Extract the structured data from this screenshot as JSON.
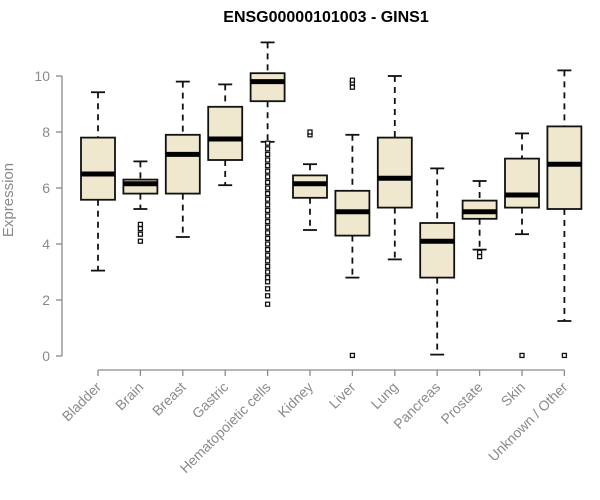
{
  "colors": {
    "box_fill": "#efe8cf",
    "box_stroke": "#111111",
    "median": "#000000",
    "axis": "#8a8a8a",
    "text_gray": "#8a8a8a",
    "title": "#000000"
  },
  "chart_data": {
    "type": "boxplot",
    "title": "ENSG00000101003 - GINS1",
    "xlabel": "",
    "ylabel": "Expression",
    "ylim": [
      0,
      10.5
    ],
    "yticks": [
      0,
      2,
      4,
      6,
      8,
      10
    ],
    "ytick_labels": [
      "0",
      "2",
      "4",
      "6",
      "8",
      "10"
    ],
    "grid": false,
    "legend": "none",
    "categories": [
      "Bladder",
      "Brain",
      "Breast",
      "Gastric",
      "Hematopoietic cells",
      "Kidney",
      "Liver",
      "Lung",
      "Pancreas",
      "Prostate",
      "Skin",
      "Unknown / Other"
    ],
    "boxes": [
      {
        "category": "Bladder",
        "whisker_low": 3.05,
        "q1": 5.58,
        "median": 6.5,
        "q3": 7.8,
        "whisker_high": 9.42,
        "outliers": []
      },
      {
        "category": "Brain",
        "whisker_low": 5.25,
        "q1": 5.8,
        "median": 6.15,
        "q3": 6.3,
        "whisker_high": 6.95,
        "outliers": [
          4.1,
          4.35,
          4.55,
          4.7
        ]
      },
      {
        "category": "Breast",
        "whisker_low": 4.25,
        "q1": 5.8,
        "median": 7.2,
        "q3": 7.9,
        "whisker_high": 9.8,
        "outliers": []
      },
      {
        "category": "Gastric",
        "whisker_low": 6.1,
        "q1": 7.0,
        "median": 7.75,
        "q3": 8.9,
        "whisker_high": 9.7,
        "outliers": []
      },
      {
        "category": "Hematopoietic cells",
        "whisker_low": 7.65,
        "q1": 9.1,
        "median": 9.8,
        "q3": 10.1,
        "whisker_high": 11.2,
        "outliers": [
          7.6,
          7.4,
          7.2,
          7.0,
          6.8,
          6.6,
          6.4,
          6.2,
          6.0,
          5.8,
          5.6,
          5.4,
          5.2,
          5.0,
          4.8,
          4.6,
          4.4,
          4.2,
          4.0,
          3.8,
          3.6,
          3.4,
          3.2,
          3.0,
          2.8,
          2.65,
          2.4,
          2.15,
          1.85
        ]
      },
      {
        "category": "Kidney",
        "whisker_low": 4.5,
        "q1": 5.65,
        "median": 6.15,
        "q3": 6.45,
        "whisker_high": 6.85,
        "outliers": [
          7.9,
          8.0
        ]
      },
      {
        "category": "Liver",
        "whisker_low": 2.8,
        "q1": 4.3,
        "median": 5.15,
        "q3": 5.9,
        "whisker_high": 7.9,
        "outliers": [
          9.6,
          9.75,
          9.85,
          0.02
        ]
      },
      {
        "category": "Lung",
        "whisker_low": 3.45,
        "q1": 5.3,
        "median": 6.35,
        "q3": 7.8,
        "whisker_high": 10.0,
        "outliers": []
      },
      {
        "category": "Pancreas",
        "whisker_low": 0.05,
        "q1": 2.8,
        "median": 4.1,
        "q3": 4.75,
        "whisker_high": 6.7,
        "outliers": []
      },
      {
        "category": "Prostate",
        "whisker_low": 3.8,
        "q1": 4.9,
        "median": 5.15,
        "q3": 5.55,
        "whisker_high": 6.25,
        "outliers": [
          3.55,
          3.7
        ]
      },
      {
        "category": "Skin",
        "whisker_low": 4.35,
        "q1": 5.3,
        "median": 5.75,
        "q3": 7.05,
        "whisker_high": 7.95,
        "outliers": [
          0.02
        ]
      },
      {
        "category": "Unknown / Other",
        "whisker_low": 1.25,
        "q1": 5.25,
        "median": 6.85,
        "q3": 8.2,
        "whisker_high": 10.2,
        "outliers": [
          0.02
        ]
      }
    ]
  }
}
